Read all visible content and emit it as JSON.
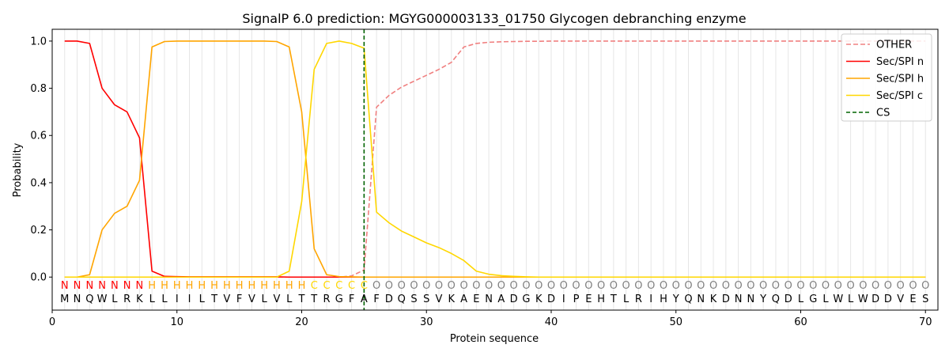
{
  "chart_data": {
    "type": "line",
    "title": "SignalP 6.0 prediction: MGYG000003133_01750 Glycogen debranching enzyme",
    "xlabel": "Protein sequence",
    "ylabel": "Probability",
    "xlim": [
      0,
      71
    ],
    "ylim": [
      -0.14,
      1.05
    ],
    "xticks": [
      0,
      10,
      20,
      30,
      40,
      50,
      60,
      70
    ],
    "yticks": [
      0.0,
      0.2,
      0.4,
      0.6,
      0.8,
      1.0
    ],
    "xtick_labels": [
      "0",
      "10",
      "20",
      "30",
      "40",
      "50",
      "60",
      "70"
    ],
    "ytick_labels": [
      "0.0",
      "0.2",
      "0.4",
      "0.6",
      "0.8",
      "1.0"
    ],
    "grid": "vertical lines at each residue",
    "legend_position": "upper right",
    "sequence": [
      "M",
      "N",
      "Q",
      "W",
      "L",
      "R",
      "K",
      "L",
      "L",
      "I",
      "I",
      "L",
      "T",
      "V",
      "F",
      "V",
      "L",
      "V",
      "L",
      "T",
      "T",
      "R",
      "G",
      "F",
      "A",
      "F",
      "D",
      "Q",
      "S",
      "S",
      "V",
      "K",
      "A",
      "E",
      "N",
      "A",
      "D",
      "G",
      "K",
      "D",
      "I",
      "P",
      "E",
      "H",
      "T",
      "L",
      "R",
      "I",
      "H",
      "Y",
      "Q",
      "N",
      "K",
      "D",
      "N",
      "N",
      "Y",
      "Q",
      "D",
      "L",
      "G",
      "L",
      "W",
      "L",
      "W",
      "D",
      "D",
      "V",
      "E",
      "S"
    ],
    "labels": [
      "N",
      "N",
      "N",
      "N",
      "N",
      "N",
      "N",
      "H",
      "H",
      "H",
      "H",
      "H",
      "H",
      "H",
      "H",
      "H",
      "H",
      "H",
      "H",
      "H",
      "C",
      "C",
      "C",
      "C",
      "C",
      "O",
      "O",
      "O",
      "O",
      "O",
      "O",
      "O",
      "O",
      "O",
      "O",
      "O",
      "O",
      "O",
      "O",
      "O",
      "O",
      "O",
      "O",
      "O",
      "O",
      "O",
      "O",
      "O",
      "O",
      "O",
      "O",
      "O",
      "O",
      "O",
      "O",
      "O",
      "O",
      "O",
      "O",
      "O",
      "O",
      "O",
      "O",
      "O",
      "O",
      "O",
      "O",
      "O",
      "O",
      "O"
    ],
    "label_colors": {
      "N": "#ff0000",
      "H": "#ffa500",
      "C": "#ffd700",
      "O": "#808080"
    },
    "cleavage_site": 25,
    "series": [
      {
        "name": "OTHER",
        "color": "#f08080",
        "dash": "dashed",
        "values": [
          0,
          0,
          0,
          0,
          0,
          0,
          0,
          0,
          0,
          0,
          0,
          0,
          0,
          0,
          0,
          0,
          0,
          0,
          0,
          0,
          0,
          0,
          0,
          0.005,
          0.03,
          0.72,
          0.77,
          0.805,
          0.83,
          0.855,
          0.88,
          0.91,
          0.975,
          0.99,
          0.995,
          0.997,
          0.998,
          0.999,
          0.999,
          1,
          1,
          1,
          1,
          1,
          1,
          1,
          1,
          1,
          1,
          1,
          1,
          1,
          1,
          1,
          1,
          1,
          1,
          1,
          1,
          1,
          1,
          1,
          1,
          1,
          1,
          1,
          1,
          1,
          1,
          1
        ]
      },
      {
        "name": "Sec/SPI n",
        "color": "#ff0000",
        "dash": "solid",
        "values": [
          1.0,
          1.0,
          0.99,
          0.8,
          0.73,
          0.7,
          0.59,
          0.025,
          0.003,
          0.002,
          0.001,
          0.001,
          0.001,
          0.001,
          0.001,
          0.001,
          0.001,
          0.001,
          0,
          0,
          0,
          0,
          0,
          0,
          0,
          0,
          0,
          0,
          0,
          0,
          0,
          0,
          0,
          0,
          0,
          0,
          0,
          0,
          0,
          0,
          0,
          0,
          0,
          0,
          0,
          0,
          0,
          0,
          0,
          0,
          0,
          0,
          0,
          0,
          0,
          0,
          0,
          0,
          0,
          0,
          0,
          0,
          0,
          0,
          0,
          0,
          0,
          0,
          0,
          0
        ]
      },
      {
        "name": "Sec/SPI h",
        "color": "#ffa500",
        "dash": "solid",
        "values": [
          0,
          0,
          0.01,
          0.2,
          0.27,
          0.3,
          0.41,
          0.975,
          0.998,
          1.0,
          1.0,
          1.0,
          1.0,
          1.0,
          1.0,
          1.0,
          1.0,
          0.998,
          0.975,
          0.7,
          0.12,
          0.01,
          0.002,
          0.001,
          0,
          0,
          0,
          0,
          0,
          0,
          0,
          0,
          0,
          0,
          0,
          0,
          0,
          0,
          0,
          0,
          0,
          0,
          0,
          0,
          0,
          0,
          0,
          0,
          0,
          0,
          0,
          0,
          0,
          0,
          0,
          0,
          0,
          0,
          0,
          0,
          0,
          0,
          0,
          0,
          0,
          0,
          0,
          0,
          0,
          0
        ]
      },
      {
        "name": "Sec/SPI c",
        "color": "#ffd700",
        "dash": "solid",
        "values": [
          0,
          0,
          0,
          0,
          0,
          0,
          0,
          0,
          0,
          0,
          0,
          0,
          0,
          0,
          0,
          0,
          0,
          0,
          0.025,
          0.32,
          0.88,
          0.99,
          1.0,
          0.99,
          0.97,
          0.275,
          0.23,
          0.195,
          0.17,
          0.145,
          0.125,
          0.1,
          0.07,
          0.025,
          0.012,
          0.006,
          0.003,
          0.001,
          0,
          0,
          0,
          0,
          0,
          0,
          0,
          0,
          0,
          0,
          0,
          0,
          0,
          0,
          0,
          0,
          0,
          0,
          0,
          0,
          0,
          0,
          0,
          0,
          0,
          0,
          0,
          0,
          0,
          0,
          0,
          0
        ]
      }
    ],
    "legend": [
      "OTHER",
      "Sec/SPI n",
      "Sec/SPI h",
      "Sec/SPI c",
      "CS"
    ],
    "cs_color": "#006400"
  }
}
